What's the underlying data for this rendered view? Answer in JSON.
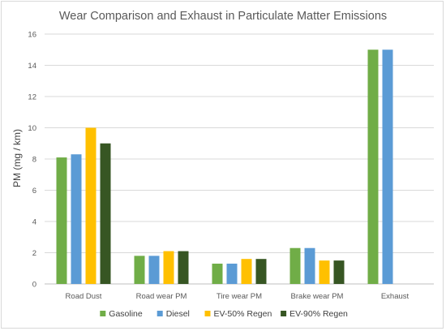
{
  "chart_data": {
    "type": "bar",
    "title": "Wear Comparison and Exhaust  in Particulate Matter Emissions",
    "xlabel": "",
    "ylabel": "PM (mg / km)",
    "ylim": [
      0,
      16
    ],
    "yticks": [
      0,
      2,
      4,
      6,
      8,
      10,
      12,
      14,
      16
    ],
    "grid": true,
    "legend_position": "bottom",
    "categories": [
      "Road Dust",
      "Road wear PM",
      "Tire wear PM",
      "Brake wear PM",
      "Exhaust"
    ],
    "series": [
      {
        "name": "Gasoline",
        "color": "#70ad47",
        "values": [
          8.1,
          1.8,
          1.3,
          2.3,
          15
        ]
      },
      {
        "name": "Diesel",
        "color": "#5b9bd5",
        "values": [
          8.3,
          1.8,
          1.3,
          2.3,
          15
        ]
      },
      {
        "name": "EV-50% Regen",
        "color": "#ffc000",
        "values": [
          10,
          2.1,
          1.6,
          1.5,
          0
        ]
      },
      {
        "name": "EV-90% Regen",
        "color": "#375623",
        "values": [
          9,
          2.1,
          1.6,
          1.5,
          0
        ]
      }
    ]
  }
}
